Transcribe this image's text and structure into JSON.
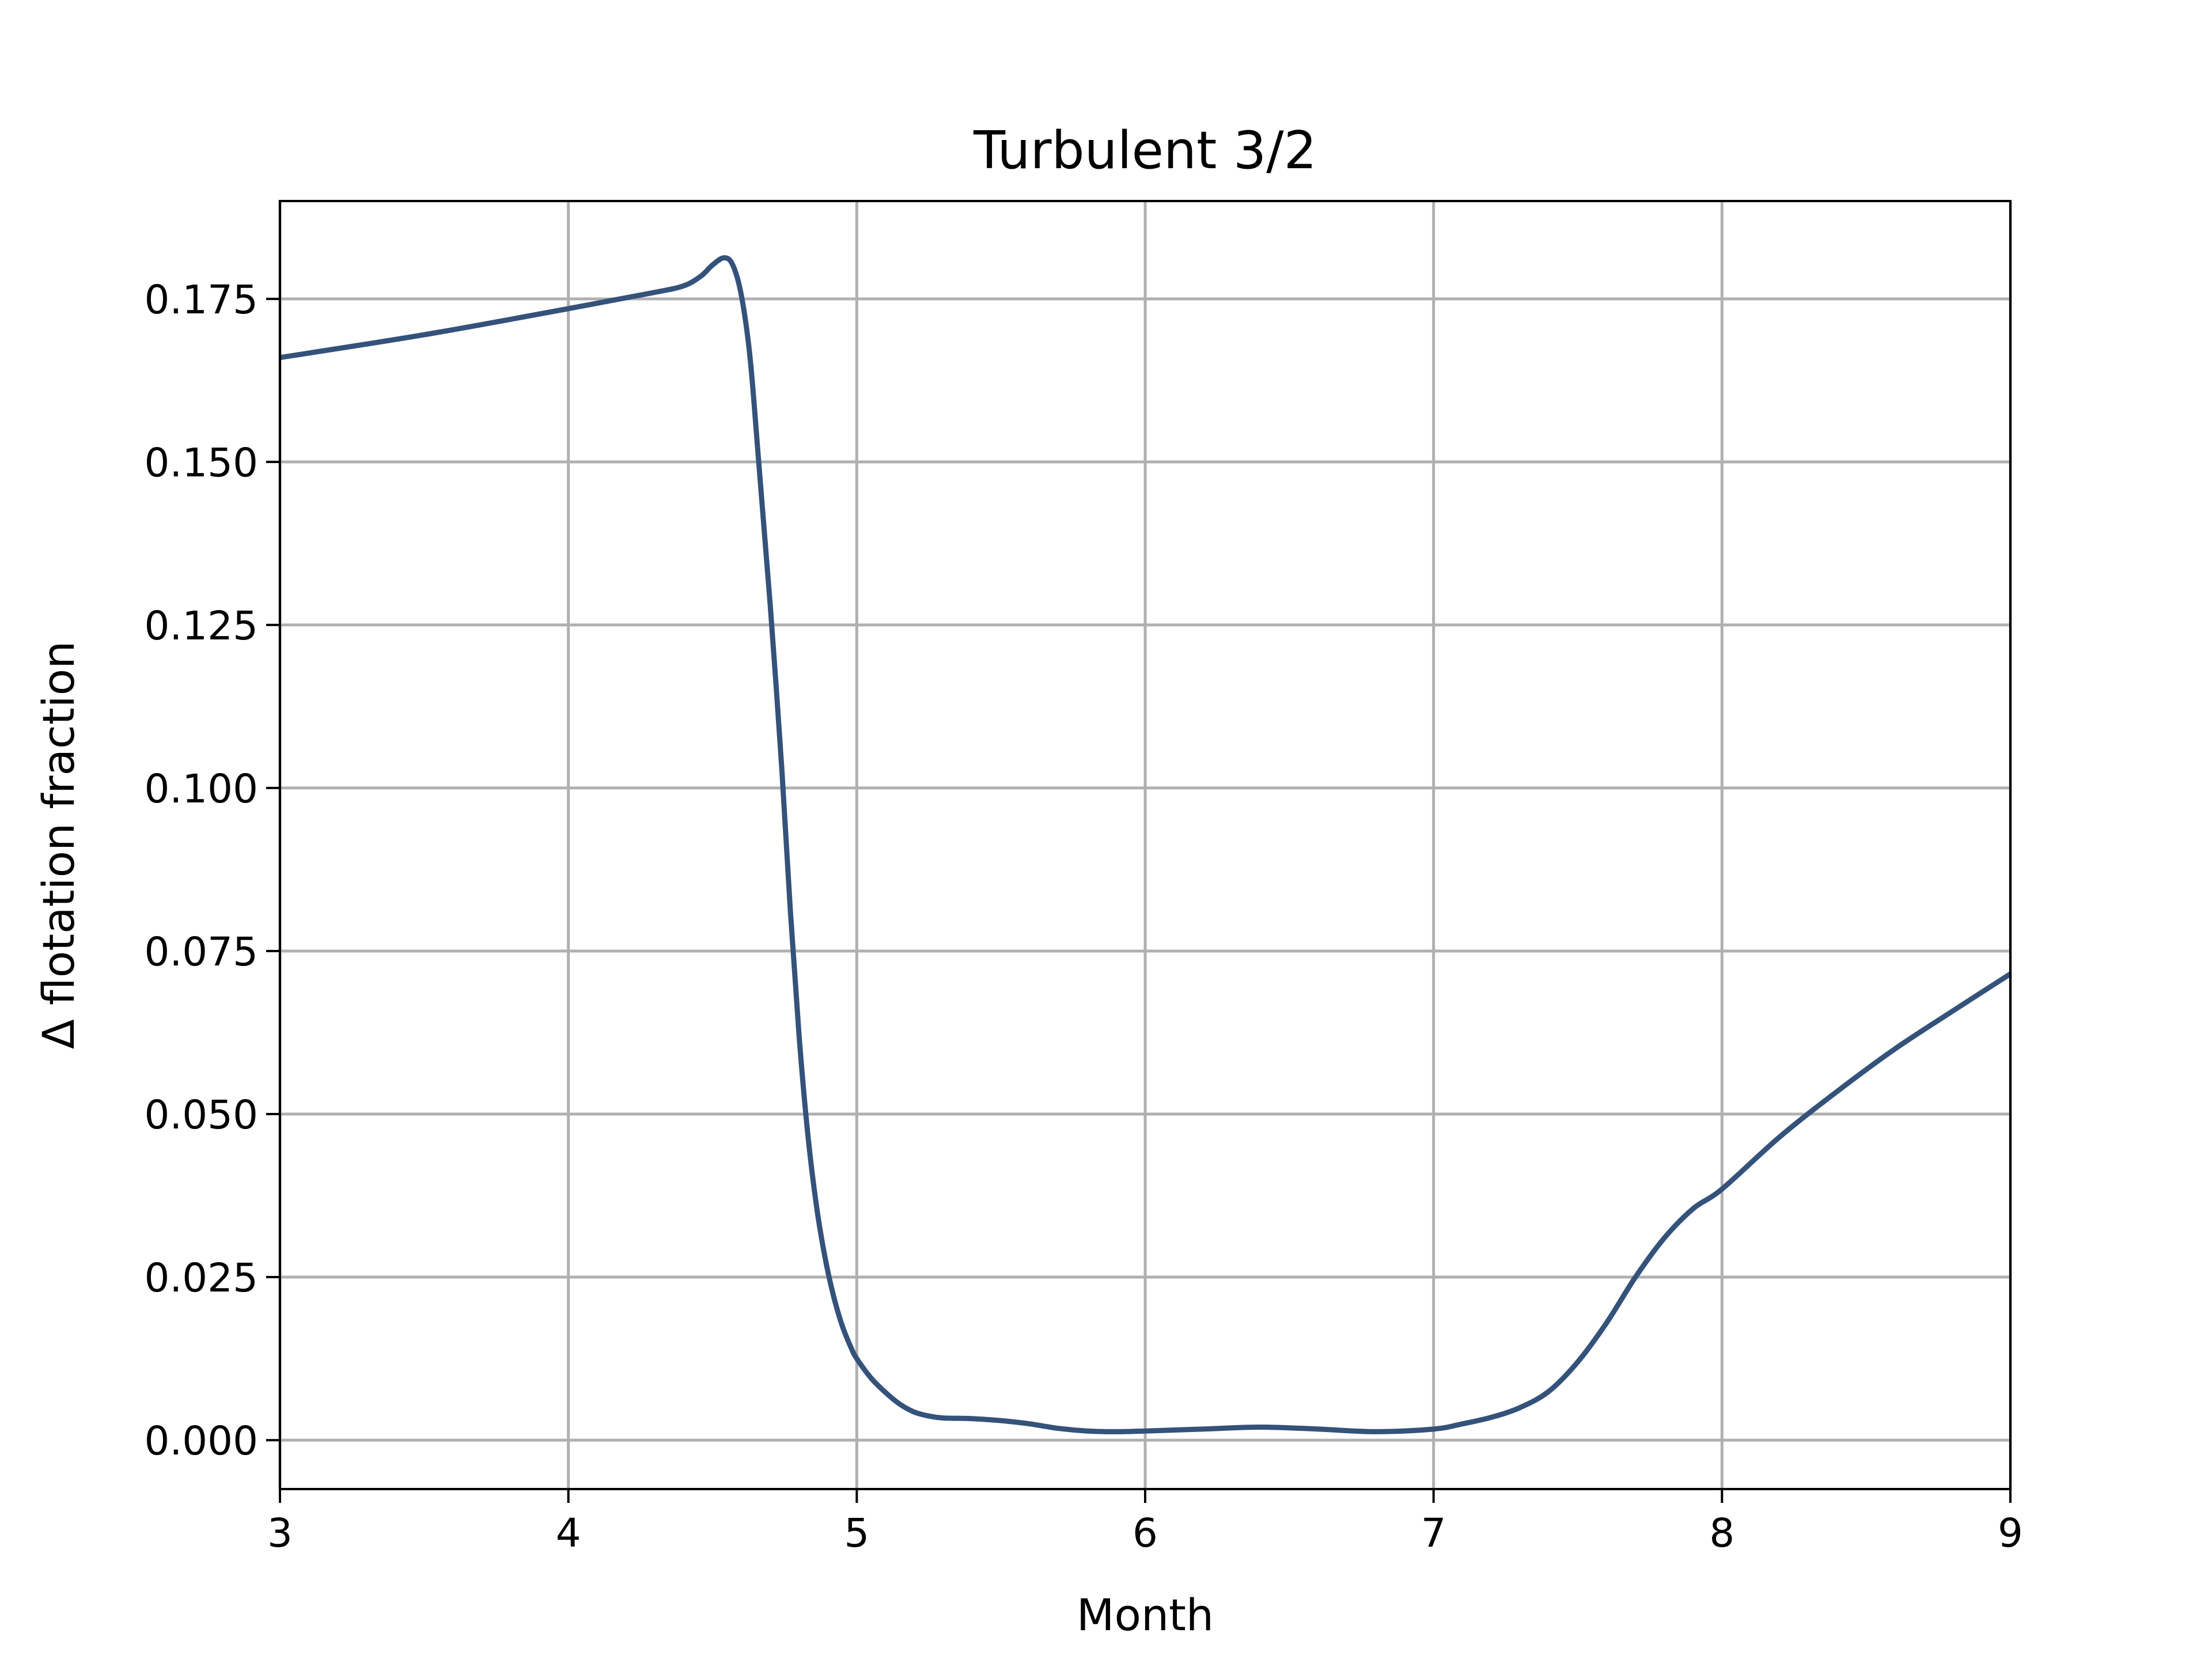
{
  "chart_data": {
    "type": "line",
    "title": "Turbulent 3/2",
    "xlabel": "Month",
    "ylabel": "Δ flotation fraction",
    "xlim": [
      3,
      9
    ],
    "ylim": [
      -0.0075,
      0.19
    ],
    "xticks": [
      3,
      4,
      5,
      6,
      7,
      8,
      9
    ],
    "xtick_labels": [
      "3",
      "4",
      "5",
      "6",
      "7",
      "8",
      "9"
    ],
    "yticks": [
      0.0,
      0.025,
      0.05,
      0.075,
      0.1,
      0.125,
      0.15,
      0.175
    ],
    "ytick_labels": [
      "0.000",
      "0.025",
      "0.050",
      "0.075",
      "0.100",
      "0.125",
      "0.150",
      "0.175"
    ],
    "grid": true,
    "series": [
      {
        "color": "#34527a",
        "x": [
          3.0,
          3.5,
          4.0,
          4.3,
          4.4,
          4.46,
          4.5,
          4.54,
          4.57,
          4.6,
          4.63,
          4.66,
          4.7,
          4.74,
          4.77,
          4.8,
          4.83,
          4.86,
          4.89,
          4.92,
          4.95,
          4.98,
          5.0,
          5.05,
          5.1,
          5.15,
          5.2,
          5.25,
          5.3,
          5.4,
          5.5,
          5.6,
          5.7,
          5.8,
          5.9,
          6.0,
          6.2,
          6.4,
          6.6,
          6.8,
          7.0,
          7.1,
          7.2,
          7.3,
          7.4,
          7.5,
          7.6,
          7.7,
          7.8,
          7.9,
          8.0,
          8.2,
          8.4,
          8.6,
          8.8,
          9.0
        ],
        "y": [
          0.166,
          0.1695,
          0.1735,
          0.176,
          0.177,
          0.1785,
          0.1802,
          0.1813,
          0.1802,
          0.1755,
          0.166,
          0.15,
          0.128,
          0.103,
          0.081,
          0.062,
          0.047,
          0.036,
          0.028,
          0.022,
          0.0175,
          0.0142,
          0.0125,
          0.0095,
          0.0073,
          0.0055,
          0.0043,
          0.0037,
          0.0034,
          0.0033,
          0.003,
          0.0025,
          0.0018,
          0.0014,
          0.0013,
          0.0014,
          0.0017,
          0.002,
          0.0017,
          0.0013,
          0.0017,
          0.0025,
          0.0035,
          0.005,
          0.0075,
          0.012,
          0.018,
          0.025,
          0.031,
          0.0355,
          0.0385,
          0.0465,
          0.0535,
          0.06,
          0.0658,
          0.0715
        ]
      }
    ]
  }
}
